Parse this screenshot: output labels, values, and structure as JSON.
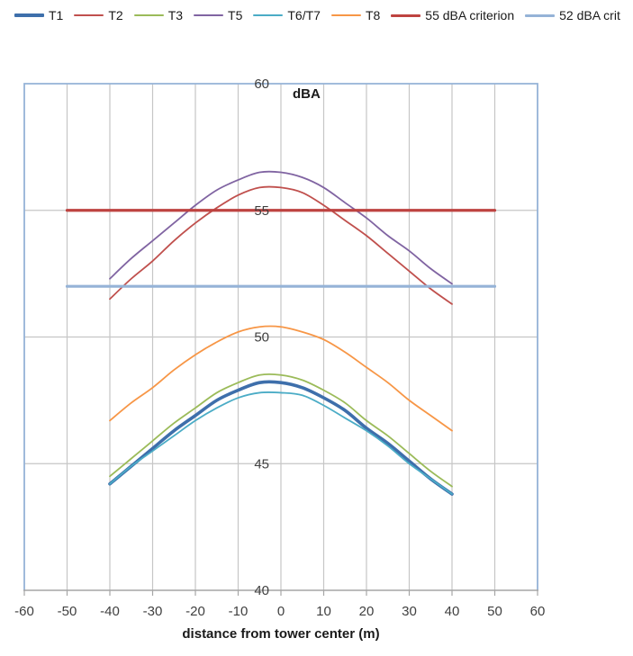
{
  "chart_data": {
    "type": "line",
    "title": "dBA",
    "xlabel": "distance from tower center (m)",
    "ylabel": "dBA",
    "xlim": [
      -60,
      60
    ],
    "ylim": [
      40,
      60
    ],
    "x_ticks": [
      -60,
      -50,
      -40,
      -30,
      -20,
      -10,
      0,
      10,
      20,
      30,
      40,
      50,
      60
    ],
    "y_ticks": [
      40,
      45,
      50,
      55,
      60
    ],
    "grid": true,
    "legend_position": "top",
    "y_axis_labels_at_x": 0,
    "x": [
      -40,
      -35,
      -30,
      -25,
      -20,
      -15,
      -10,
      -5,
      0,
      5,
      10,
      15,
      20,
      25,
      30,
      35,
      40
    ],
    "series": [
      {
        "name": "T1",
        "color": "#3E6FAB",
        "width": 3.6,
        "values": [
          44.2,
          44.9,
          45.6,
          46.3,
          46.9,
          47.5,
          47.9,
          48.2,
          48.2,
          48.0,
          47.6,
          47.1,
          46.4,
          45.8,
          45.1,
          44.4,
          43.8
        ]
      },
      {
        "name": "T2",
        "color": "#C0504D",
        "width": 1.8,
        "values": [
          51.5,
          52.3,
          53.0,
          53.8,
          54.5,
          55.1,
          55.6,
          55.9,
          55.9,
          55.7,
          55.2,
          54.6,
          54.0,
          53.3,
          52.6,
          51.9,
          51.3
        ]
      },
      {
        "name": "T3",
        "color": "#9BBB59",
        "width": 1.8,
        "values": [
          44.5,
          45.2,
          45.9,
          46.6,
          47.2,
          47.8,
          48.2,
          48.5,
          48.5,
          48.3,
          47.9,
          47.4,
          46.7,
          46.1,
          45.4,
          44.7,
          44.1
        ]
      },
      {
        "name": "T5",
        "color": "#8064A2",
        "width": 1.8,
        "values": [
          52.3,
          53.1,
          53.8,
          54.5,
          55.2,
          55.8,
          56.2,
          56.5,
          56.5,
          56.3,
          55.9,
          55.3,
          54.7,
          54.0,
          53.4,
          52.7,
          52.1
        ]
      },
      {
        "name": "T6/T7",
        "color": "#4BACC6",
        "width": 1.8,
        "values": [
          44.2,
          44.9,
          45.5,
          46.1,
          46.7,
          47.2,
          47.6,
          47.8,
          47.8,
          47.7,
          47.3,
          46.8,
          46.3,
          45.7,
          45.0,
          44.4,
          43.8
        ]
      },
      {
        "name": "T8",
        "color": "#F79646",
        "width": 1.8,
        "values": [
          46.7,
          47.4,
          48.0,
          48.7,
          49.3,
          49.8,
          50.2,
          50.4,
          50.4,
          50.2,
          49.9,
          49.4,
          48.8,
          48.2,
          47.5,
          46.9,
          46.3
        ]
      },
      {
        "name": "55 dBA criterion",
        "color": "#BE4340",
        "width": 3.2,
        "x": [
          -50,
          50
        ],
        "values": [
          55,
          55
        ]
      },
      {
        "name": "52 dBA crit",
        "color": "#95B3D7",
        "width": 3.2,
        "x": [
          -50,
          50
        ],
        "values": [
          52,
          52
        ]
      }
    ],
    "colors": {
      "gridline": "#C6C6C6",
      "plot_border": "#95B3D7",
      "axis_line": "#A6A6A6",
      "tick_text": "#404040"
    }
  }
}
